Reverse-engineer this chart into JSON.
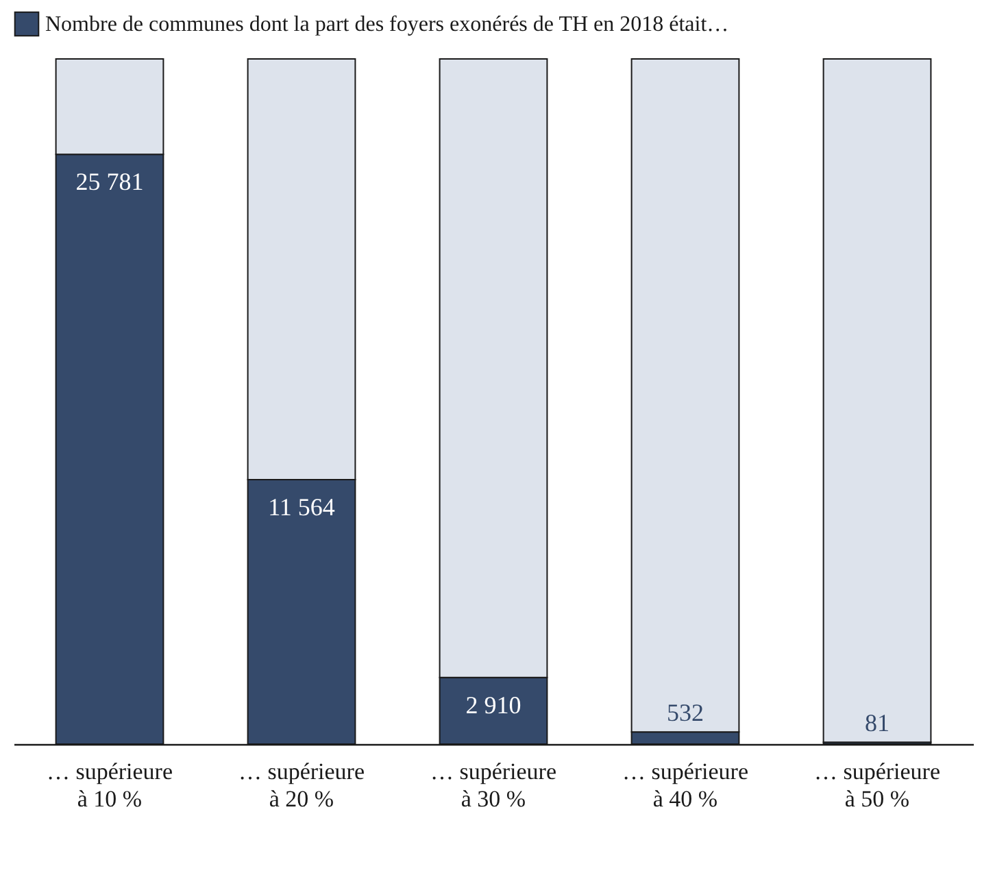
{
  "chart_data": {
    "type": "bar",
    "stacked": true,
    "categories": [
      "… supérieure\nà 10 %",
      "… supérieure\nà 20 %",
      "… supérieure\nà 30 %",
      "… supérieure\nà 40 %",
      "… supérieure\nà 50 %"
    ],
    "series": [
      {
        "name": "Nombre de communes dont la part des foyers exonérés de TH en 2018 était…",
        "color": "#354a6b",
        "values": [
          25781,
          11564,
          2910,
          532,
          81
        ],
        "value_labels": [
          "25 781",
          "11 564",
          "2 910",
          "532",
          "81"
        ]
      },
      {
        "color": "#dde3ec",
        "values": [
          4169,
          18386,
          27040,
          29418,
          29869
        ]
      }
    ],
    "legend": "top left"
  }
}
